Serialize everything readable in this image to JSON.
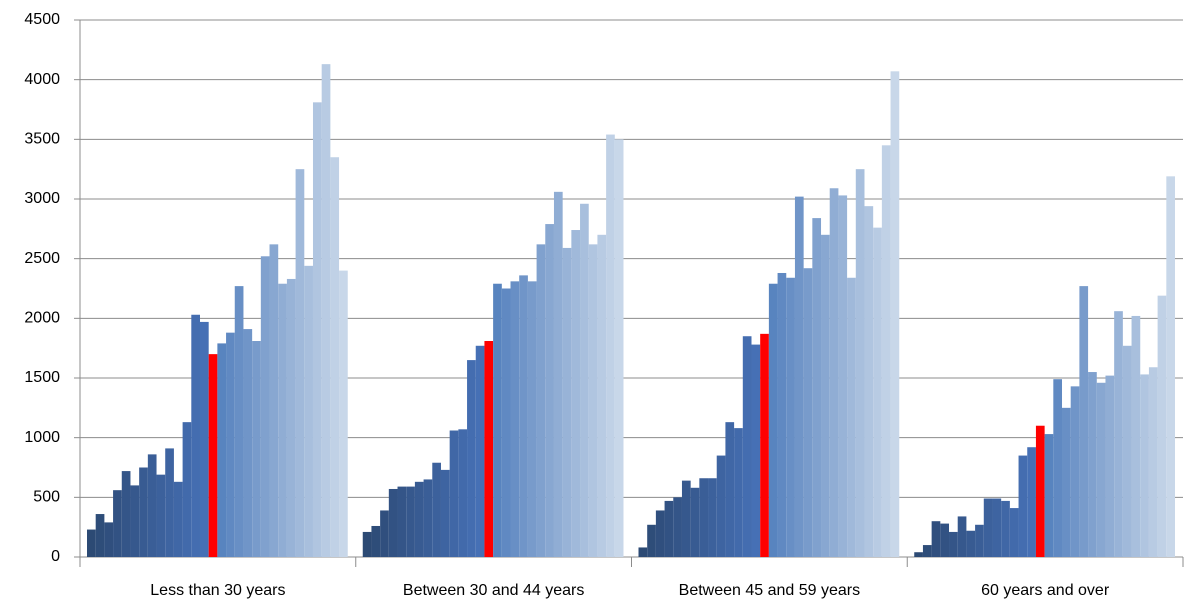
{
  "chart_data": {
    "type": "grouped-bar",
    "categories": [
      "Less than 30 years",
      "Between 30 and 44 years",
      "Between 45 and 59 years",
      "60 years and over"
    ],
    "groups": [
      [
        230,
        360,
        290,
        560,
        720,
        600,
        750,
        860,
        690,
        910,
        630,
        1130,
        2030,
        1970,
        1700,
        1790,
        1880,
        2270,
        1910,
        1810,
        2520,
        2620,
        2290,
        2330,
        3250,
        2440,
        3810,
        4130,
        3350,
        2400
      ],
      [
        210,
        260,
        390,
        570,
        590,
        590,
        630,
        650,
        790,
        730,
        1060,
        1070,
        1650,
        1770,
        1810,
        2290,
        2250,
        2310,
        2360,
        2310,
        2620,
        2790,
        3060,
        2590,
        2740,
        2960,
        2620,
        2700,
        3540,
        3500
      ],
      [
        80,
        270,
        390,
        470,
        500,
        640,
        580,
        660,
        660,
        850,
        1130,
        1080,
        1850,
        1780,
        1870,
        2290,
        2380,
        2340,
        3020,
        2420,
        2840,
        2700,
        3090,
        3030,
        2340,
        3250,
        2940,
        2760,
        3450,
        4070
      ],
      [
        40,
        100,
        300,
        280,
        210,
        340,
        220,
        270,
        490,
        490,
        470,
        410,
        850,
        920,
        1100,
        1030,
        1490,
        1250,
        1430,
        2270,
        1550,
        1460,
        1520,
        2060,
        1770,
        2020,
        1530,
        1590,
        2190,
        3190
      ]
    ],
    "bar_colors": [
      "#2c4a74",
      "#2e4d79",
      "#304f7e",
      "#325283",
      "#345588",
      "#36588d",
      "#385b92",
      "#3a5e97",
      "#3c619c",
      "#3e64a1",
      "#4067a6",
      "#426aab",
      "#446db0",
      "#4670b5",
      "#ff0000",
      "#5884bf",
      "#6089c2",
      "#688fc5",
      "#7095c8",
      "#789bcb",
      "#80a1ce",
      "#88a7d1",
      "#90add4",
      "#98b3d7",
      "#a0b9da",
      "#a8bfdd",
      "#b0c5e0",
      "#b8cbe3",
      "#c0d1e6",
      "#c8d7e9"
    ],
    "ylim": [
      0,
      4500
    ],
    "yticks": [
      0,
      500,
      1000,
      1500,
      2000,
      2500,
      3000,
      3500,
      4000,
      4500
    ],
    "grid": true
  }
}
